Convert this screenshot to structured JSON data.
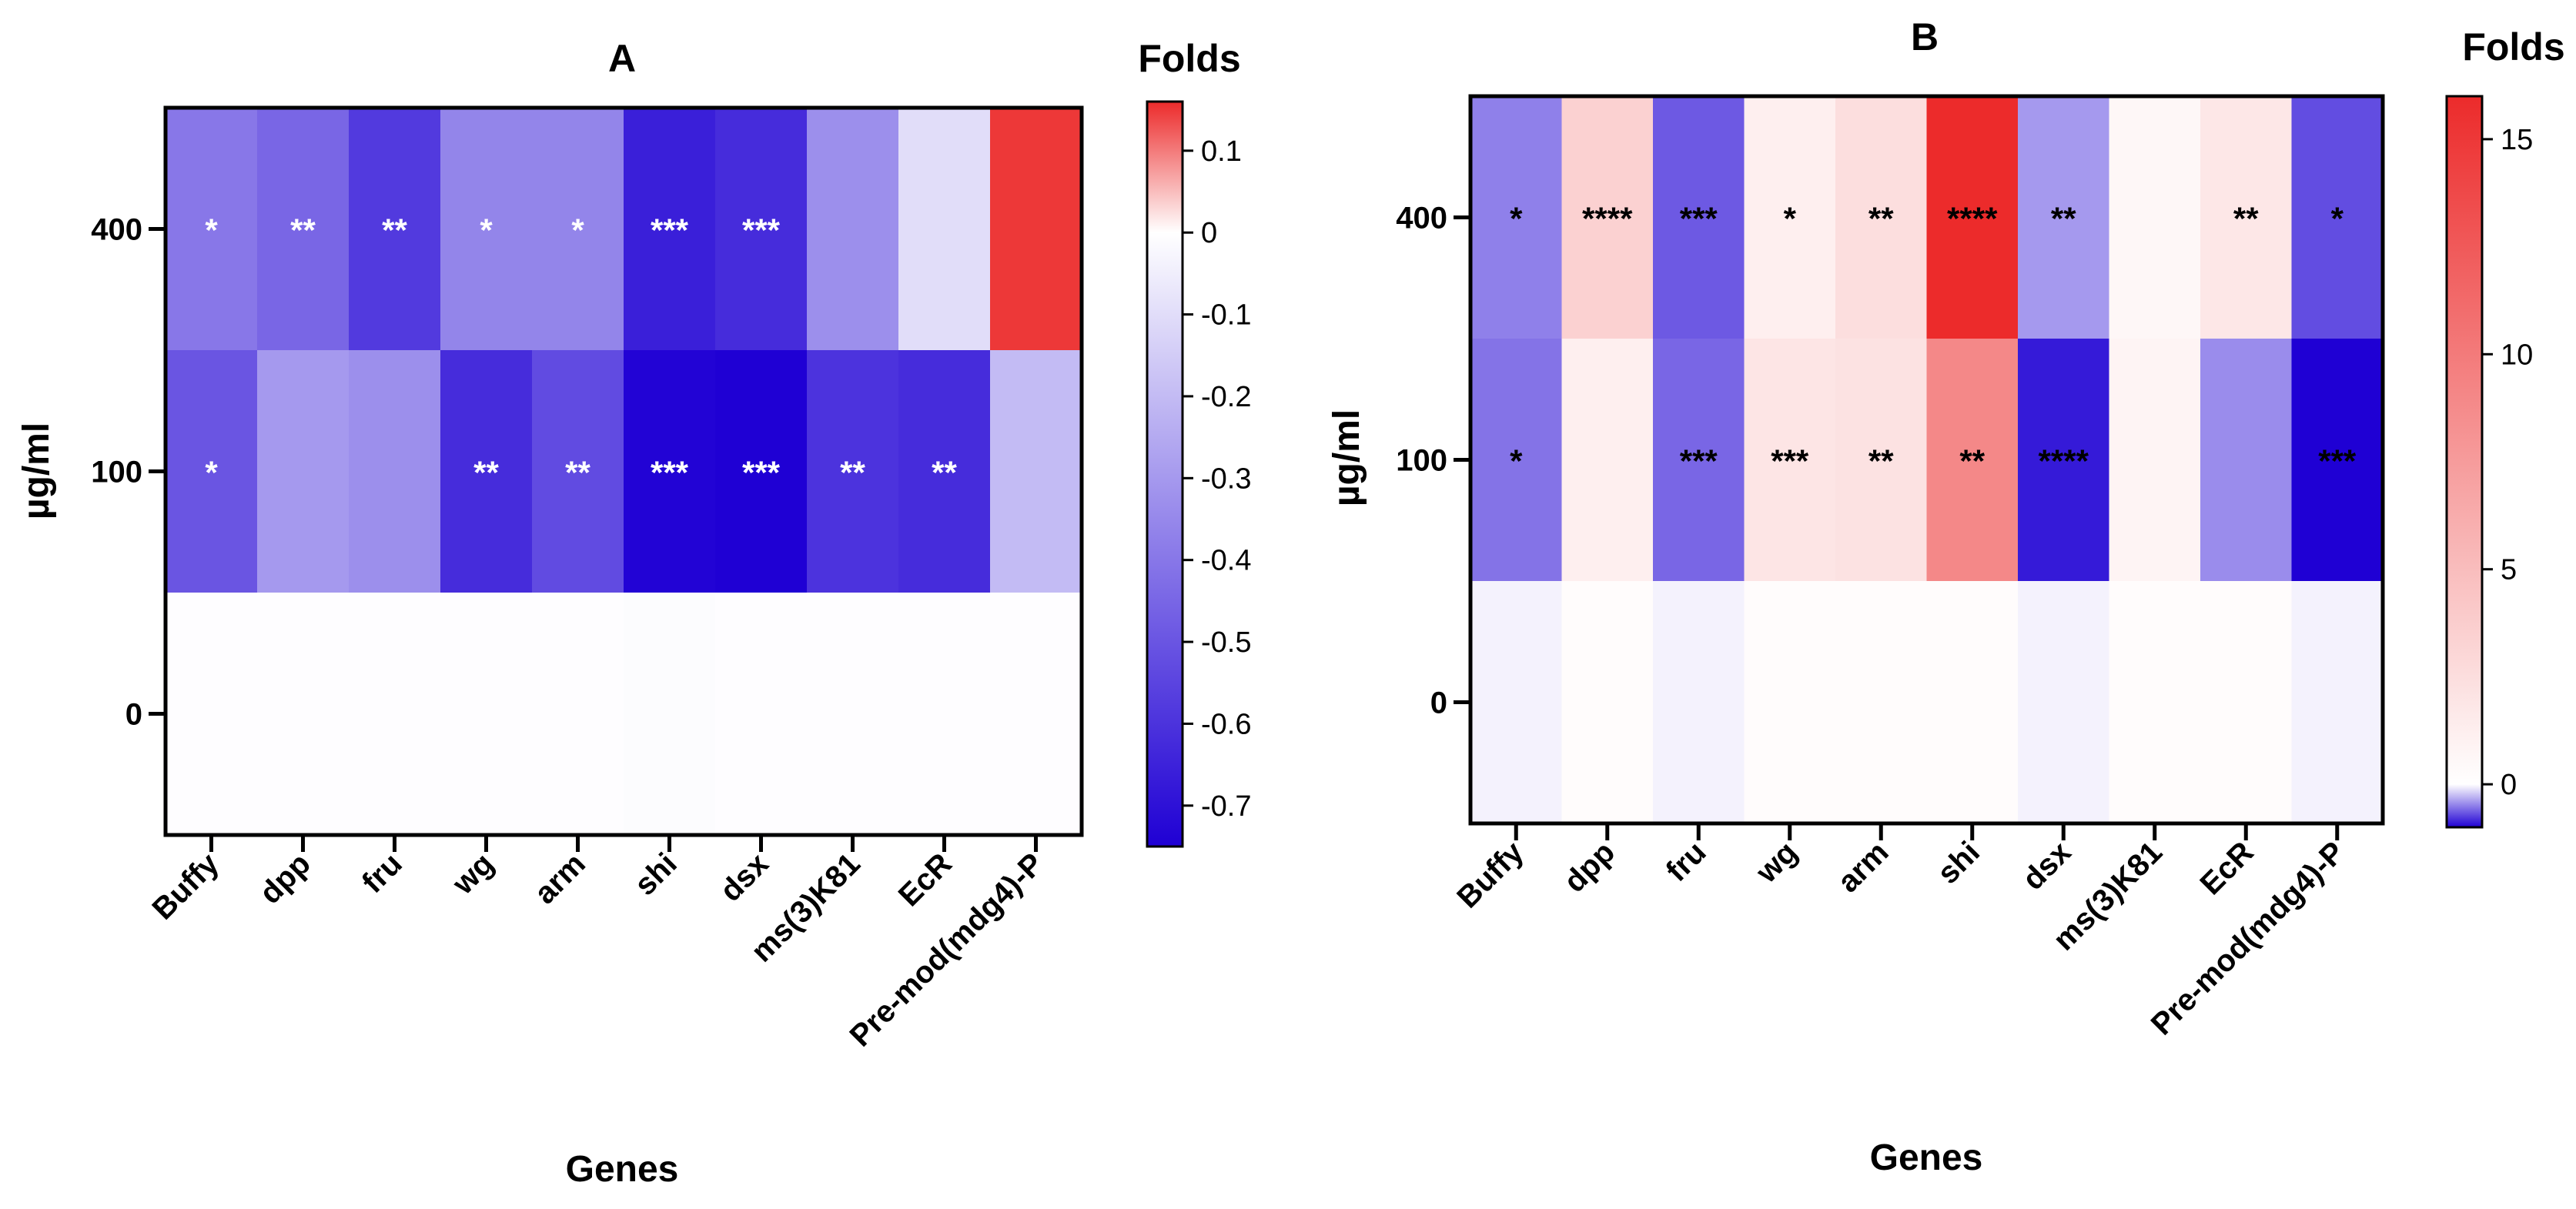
{
  "chart_data": [
    {
      "type": "heatmap",
      "title": "A",
      "xlabel": "Genes",
      "ylabel": "µg/ml",
      "x": [
        "Buffy",
        "dpp",
        "fru",
        "wg",
        "arm",
        "shi",
        "dsx",
        "ms(3)K81",
        "EcR",
        "Pre-mod(mdg4)-P"
      ],
      "y": [
        "400",
        "100",
        "0"
      ],
      "values": [
        [
          -0.4,
          -0.45,
          -0.58,
          -0.36,
          -0.36,
          -0.66,
          -0.62,
          -0.33,
          -0.1,
          0.15
        ],
        [
          -0.5,
          -0.3,
          -0.33,
          -0.62,
          -0.53,
          -0.74,
          -0.8,
          -0.6,
          -0.62,
          -0.2
        ],
        [
          -0.005,
          -0.005,
          -0.005,
          -0.005,
          -0.005,
          -0.01,
          -0.005,
          -0.005,
          -0.005,
          -0.005
        ]
      ],
      "significance": [
        [
          "*",
          "**",
          "**",
          "*",
          "*",
          "***",
          "***",
          "",
          "",
          ""
        ],
        [
          "*",
          "",
          "",
          "**",
          "**",
          "***",
          "***",
          "**",
          "**",
          ""
        ],
        [
          "",
          "",
          "",
          "",
          "",
          "",
          "",
          "",
          "",
          ""
        ]
      ],
      "significance_color": "#ffffff",
      "colorbar": {
        "title": "Folds",
        "min": -0.75,
        "max": 0.16,
        "ticks": [
          0.1,
          0,
          -0.1,
          -0.2,
          -0.3,
          -0.4,
          -0.5,
          -0.6,
          -0.7
        ],
        "tick_labels": [
          "0.1",
          "0",
          "-0.1",
          "-0.2",
          "-0.3",
          "-0.4",
          "-0.5",
          "-0.6",
          "-0.7"
        ],
        "low_color": "#1f00d4",
        "mid_color": "#ffffff",
        "high_color": "#ec2b2b"
      }
    },
    {
      "type": "heatmap",
      "title": "B",
      "xlabel": "Genes",
      "ylabel": "µg/ml",
      "x": [
        "Buffy",
        "dpp",
        "fru",
        "wg",
        "arm",
        "shi",
        "dsx",
        "ms(3)K81",
        "EcR",
        "Pre-mod(mdg4)-P"
      ],
      "y": [
        "400",
        "100",
        "0"
      ],
      "values": [
        [
          -0.5,
          3.5,
          -0.65,
          1.2,
          2.5,
          16,
          -0.4,
          0.6,
          1.8,
          -0.7
        ],
        [
          -0.55,
          1.2,
          -0.6,
          2.0,
          2.2,
          9,
          -0.9,
          0.8,
          -0.45,
          -1.0
        ],
        [
          -0.05,
          0.2,
          -0.05,
          0.2,
          0.2,
          0.2,
          -0.05,
          0.2,
          0.2,
          -0.05
        ]
      ],
      "significance": [
        [
          "*",
          "****",
          "***",
          "*",
          "**",
          "****",
          "**",
          "",
          "**",
          "*"
        ],
        [
          "*",
          "",
          "***",
          "***",
          "**",
          "**",
          "****",
          "",
          "",
          "***"
        ],
        [
          "",
          "",
          "",
          "",
          "",
          "",
          "",
          "",
          "",
          ""
        ]
      ],
      "significance_color": "#000000",
      "colorbar": {
        "title": "Folds",
        "min": -1,
        "max": 16,
        "ticks": [
          15,
          10,
          5,
          0
        ],
        "tick_labels": [
          "15",
          "10",
          "5",
          "0"
        ],
        "low_color": "#1f00d4",
        "mid_color": "#ffffff",
        "high_color": "#ec2b2b"
      }
    }
  ]
}
